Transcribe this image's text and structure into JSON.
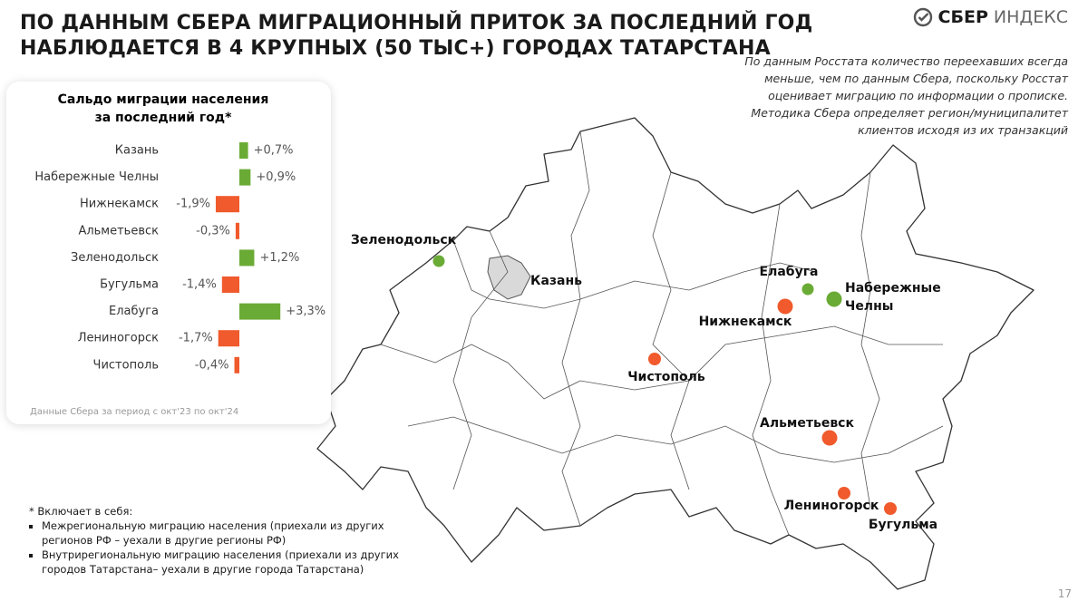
{
  "header": {
    "title": [
      "ПО ДАННЫМ СБЕРА МИГРАЦИОННЫЙ ПРИТОК ЗА ПОСЛЕДНИЙ ГОД",
      "НАБЛЮДАЕТСЯ В 4 КРУПНЫХ (50 ТЫС+) ГОРОДАХ ТАТАРСТАНА"
    ],
    "logo": [
      "СБЕР",
      "ИНДЕКС"
    ]
  },
  "note": [
    "По данным Росстата количество переехавших всегда",
    "меньше, чем по данным Сбера, поскольку Росстат",
    "оценивает миграцию по информации о прописке.",
    "Методика Сбера определяет регион/муниципалитет",
    "клиентов исходя из их транзакций"
  ],
  "chart_data": {
    "type": "bar",
    "orientation": "horizontal",
    "title": [
      "Сальдо миграции населения",
      "за последний год*"
    ],
    "categories": [
      "Казань",
      "Набережные Челны",
      "Нижнекамск",
      "Альметьевск",
      "Зеленодольск",
      "Бугульма",
      "Елабуга",
      "Лениногорск",
      "Чистополь"
    ],
    "values": [
      0.7,
      0.9,
      -1.9,
      -0.3,
      1.2,
      -1.4,
      3.3,
      -1.7,
      -0.4
    ],
    "value_labels": [
      "+0,7%",
      "+0,9%",
      "-1,9%",
      "-0,3%",
      "+1,2%",
      "-1,4%",
      "+3,3%",
      "-1,7%",
      "-0,4%"
    ],
    "colors": [
      "#6aab35",
      "#6aab35",
      "#f05a2c",
      "#f05a2c",
      "#6aab35",
      "#f05a2c",
      "#6aab35",
      "#f05a2c",
      "#f05a2c"
    ],
    "source": "Данные Сбера за период с окт'23 по окт'24"
  },
  "map": {
    "cities": [
      {
        "name": [
          "Зеленодольск"
        ],
        "color": "#6aab35"
      },
      {
        "name": [
          "Казань"
        ]
      },
      {
        "name": [
          "Елабуга"
        ],
        "color": "#6aab35"
      },
      {
        "name": [
          "Набережные",
          "Челны"
        ],
        "color": "#6aab35"
      },
      {
        "name": [
          "Нижнекамск"
        ],
        "color": "#f05a2c"
      },
      {
        "name": [
          "Чистополь"
        ],
        "color": "#f05a2c"
      },
      {
        "name": [
          "Альметьевск"
        ],
        "color": "#f05a2c"
      },
      {
        "name": [
          "Лениногорск"
        ],
        "color": "#f05a2c"
      },
      {
        "name": [
          "Бугульма"
        ],
        "color": "#f05a2c"
      }
    ]
  },
  "footnote": {
    "head": "* Включает в себя:",
    "items": [
      [
        "Межрегиональную миграцию населения (приехали из других",
        "регионов РФ – уехали в другие регионы РФ)"
      ],
      [
        "Внутрирегиональную миграцию населения (приехали из других",
        "городов Татарстана– уехали в другие города Татарстана)"
      ]
    ]
  },
  "page": "17"
}
